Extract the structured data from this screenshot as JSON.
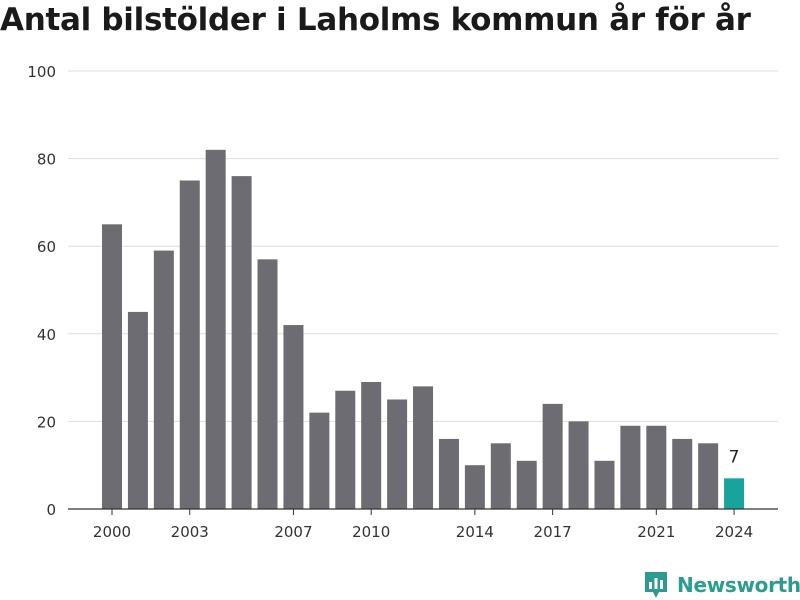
{
  "title": "Antal bilstölder i Laholms kommun år för år",
  "brand": {
    "name": "Newsworthy",
    "icon": "newsworthy-logo-icon"
  },
  "colors": {
    "bar": "#6d6c73",
    "highlight": "#1aa39a",
    "grid": "#dddddd",
    "axis": "#333333",
    "text": "#333333",
    "brand": "#2a9d8f"
  },
  "chart_data": {
    "type": "bar",
    "title": "Antal bilstölder i Laholms kommun år för år",
    "xlabel": "",
    "ylabel": "",
    "categories": [
      2000,
      2001,
      2002,
      2003,
      2004,
      2005,
      2006,
      2007,
      2008,
      2009,
      2010,
      2011,
      2012,
      2013,
      2014,
      2015,
      2016,
      2017,
      2018,
      2019,
      2020,
      2021,
      2022,
      2023,
      2024
    ],
    "values": [
      65,
      45,
      59,
      75,
      82,
      76,
      57,
      42,
      22,
      27,
      29,
      25,
      28,
      16,
      10,
      15,
      11,
      24,
      20,
      11,
      19,
      19,
      16,
      15,
      7
    ],
    "ylim": [
      0,
      100
    ],
    "yticks": [
      0,
      20,
      40,
      60,
      80,
      100
    ],
    "xticks": [
      2000,
      2003,
      2007,
      2010,
      2014,
      2017,
      2021,
      2024
    ],
    "highlight": {
      "category": 2024,
      "label": "7"
    },
    "grid": true,
    "legend": "none"
  }
}
